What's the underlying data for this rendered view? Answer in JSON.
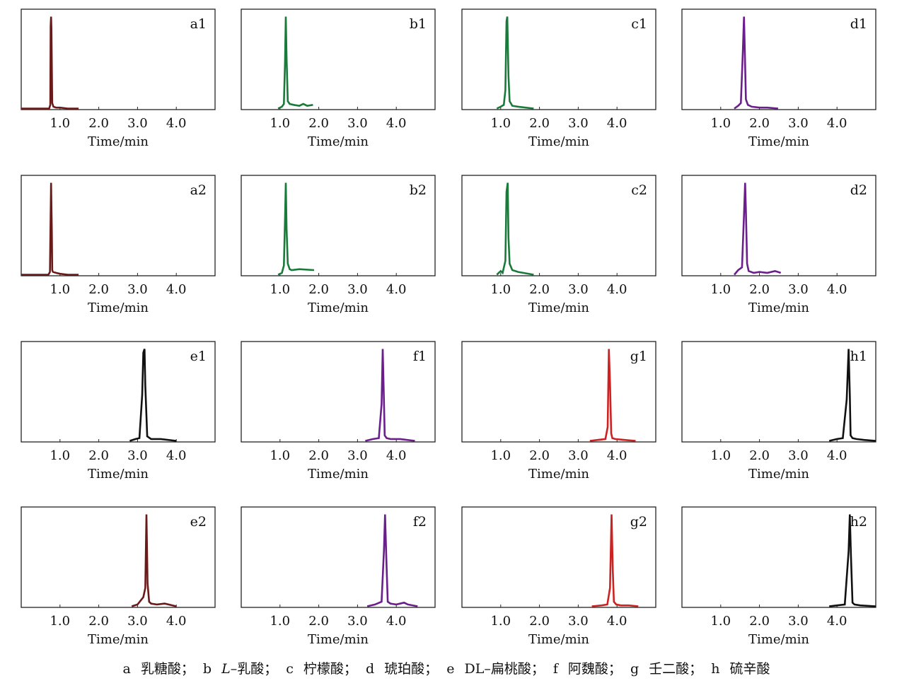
{
  "figure": {
    "xlabel": "Time/min",
    "x_ticks": [
      "1.0",
      "2.0",
      "3.0",
      "4.0"
    ]
  },
  "chart_data": [
    {
      "type": "line",
      "panel_label": "a1",
      "color": "#6b1a1a",
      "xlim": [
        0,
        5
      ],
      "x_ticks": [
        1.0,
        2.0,
        3.0,
        4.0
      ],
      "xlabel": "Time/min",
      "x": [
        0.0,
        0.72,
        0.75,
        0.76,
        0.77,
        0.78,
        0.8,
        0.83,
        0.9,
        1.0,
        1.2,
        1.48
      ],
      "y": [
        0.0,
        0.0,
        0.04,
        0.9,
        1.0,
        0.87,
        0.06,
        0.02,
        0.01,
        0.01,
        0.0,
        0.0
      ]
    },
    {
      "type": "line",
      "panel_label": "b1",
      "color": "#1a7a3a",
      "xlim": [
        0,
        5
      ],
      "x_ticks": [
        1.0,
        2.0,
        3.0,
        4.0
      ],
      "xlabel": "Time/min",
      "x": [
        0.95,
        1.05,
        1.1,
        1.13,
        1.15,
        1.17,
        1.2,
        1.25,
        1.35,
        1.5,
        1.6,
        1.7,
        1.85
      ],
      "y": [
        0.0,
        0.02,
        0.05,
        0.5,
        1.0,
        0.55,
        0.08,
        0.05,
        0.04,
        0.03,
        0.05,
        0.03,
        0.04
      ]
    },
    {
      "type": "line",
      "panel_label": "c1",
      "color": "#1a7a3a",
      "xlim": [
        0,
        5
      ],
      "x_ticks": [
        1.0,
        2.0,
        3.0,
        4.0
      ],
      "xlabel": "Time/min",
      "x": [
        0.9,
        1.0,
        1.08,
        1.12,
        1.15,
        1.17,
        1.2,
        1.23,
        1.3,
        1.45,
        1.85
      ],
      "y": [
        0.0,
        0.02,
        0.04,
        0.2,
        0.95,
        1.0,
        0.35,
        0.08,
        0.03,
        0.02,
        0.0
      ]
    },
    {
      "type": "line",
      "panel_label": "d1",
      "color": "#6a1f8a",
      "xlim": [
        0,
        5
      ],
      "x_ticks": [
        1.0,
        2.0,
        3.0,
        4.0
      ],
      "xlabel": "Time/min",
      "x": [
        1.35,
        1.45,
        1.52,
        1.57,
        1.6,
        1.62,
        1.65,
        1.7,
        1.8,
        2.0,
        2.2,
        2.48
      ],
      "y": [
        0.0,
        0.03,
        0.06,
        0.6,
        1.0,
        0.65,
        0.1,
        0.04,
        0.02,
        0.01,
        0.01,
        0.0
      ]
    },
    {
      "type": "line",
      "panel_label": "a2",
      "color": "#6b1a1a",
      "xlim": [
        0,
        5
      ],
      "x_ticks": [
        1.0,
        2.0,
        3.0,
        4.0
      ],
      "xlabel": "Time/min",
      "x": [
        0.0,
        0.7,
        0.74,
        0.75,
        0.77,
        0.79,
        0.8,
        0.82,
        0.9,
        1.0,
        1.2,
        1.48
      ],
      "y": [
        0.0,
        0.0,
        0.03,
        0.35,
        1.0,
        0.45,
        0.05,
        0.03,
        0.02,
        0.01,
        0.0,
        0.0
      ]
    },
    {
      "type": "line",
      "panel_label": "b2",
      "color": "#1a7a3a",
      "xlim": [
        0,
        5
      ],
      "x_ticks": [
        1.0,
        2.0,
        3.0,
        4.0
      ],
      "xlabel": "Time/min",
      "x": [
        0.95,
        1.05,
        1.1,
        1.13,
        1.15,
        1.17,
        1.2,
        1.25,
        1.3,
        1.5,
        1.88
      ],
      "y": [
        0.0,
        0.02,
        0.1,
        0.6,
        1.0,
        0.5,
        0.12,
        0.06,
        0.05,
        0.06,
        0.05
      ]
    },
    {
      "type": "line",
      "panel_label": "c2",
      "color": "#1a7a3a",
      "xlim": [
        0,
        5
      ],
      "x_ticks": [
        1.0,
        2.0,
        3.0,
        4.0
      ],
      "xlabel": "Time/min",
      "x": [
        0.9,
        1.0,
        1.05,
        1.12,
        1.15,
        1.18,
        1.2,
        1.23,
        1.3,
        1.45,
        1.85
      ],
      "y": [
        0.0,
        0.04,
        0.02,
        0.15,
        0.9,
        1.0,
        0.4,
        0.12,
        0.05,
        0.03,
        0.0
      ]
    },
    {
      "type": "line",
      "panel_label": "d2",
      "color": "#6a1f8a",
      "xlim": [
        0,
        5
      ],
      "x_ticks": [
        1.0,
        2.0,
        3.0,
        4.0
      ],
      "xlabel": "Time/min",
      "x": [
        1.35,
        1.45,
        1.55,
        1.6,
        1.63,
        1.65,
        1.68,
        1.72,
        1.85,
        2.0,
        2.2,
        2.4,
        2.55
      ],
      "y": [
        0.0,
        0.05,
        0.08,
        0.65,
        1.0,
        0.7,
        0.12,
        0.04,
        0.02,
        0.03,
        0.02,
        0.04,
        0.02
      ]
    },
    {
      "type": "line",
      "panel_label": "e1",
      "color": "#111111",
      "xlim": [
        0,
        5
      ],
      "x_ticks": [
        1.0,
        2.0,
        3.0,
        4.0
      ],
      "xlabel": "Time/min",
      "x": [
        2.8,
        2.95,
        3.05,
        3.12,
        3.15,
        3.18,
        3.2,
        3.25,
        3.35,
        3.6,
        4.0
      ],
      "y": [
        0.0,
        0.02,
        0.03,
        0.5,
        0.96,
        1.0,
        0.6,
        0.05,
        0.02,
        0.02,
        0.0
      ]
    },
    {
      "type": "line",
      "panel_label": "f1",
      "color": "#6a1f8a",
      "xlim": [
        0,
        5
      ],
      "x_ticks": [
        1.0,
        2.0,
        3.0,
        4.0
      ],
      "xlabel": "Time/min",
      "x": [
        3.2,
        3.4,
        3.55,
        3.62,
        3.65,
        3.68,
        3.7,
        3.75,
        3.85,
        4.1,
        4.48
      ],
      "y": [
        0.0,
        0.02,
        0.03,
        0.4,
        1.0,
        0.45,
        0.06,
        0.03,
        0.02,
        0.02,
        0.0
      ]
    },
    {
      "type": "line",
      "panel_label": "g1",
      "color": "#cc2222",
      "xlim": [
        0,
        5
      ],
      "x_ticks": [
        1.0,
        2.0,
        3.0,
        4.0
      ],
      "xlabel": "Time/min",
      "x": [
        3.3,
        3.5,
        3.7,
        3.76,
        3.79,
        3.82,
        3.85,
        3.88,
        3.95,
        4.2,
        4.48
      ],
      "y": [
        0.0,
        0.01,
        0.02,
        0.15,
        1.0,
        0.63,
        0.08,
        0.03,
        0.02,
        0.01,
        0.0
      ]
    },
    {
      "type": "line",
      "panel_label": "h1",
      "color": "#111111",
      "xlim": [
        0,
        5
      ],
      "x_ticks": [
        1.0,
        2.0,
        3.0,
        4.0
      ],
      "xlabel": "Time/min",
      "x": [
        3.8,
        4.0,
        4.15,
        4.25,
        4.3,
        4.33,
        4.35,
        4.4,
        4.5,
        4.7,
        5.0
      ],
      "y": [
        0.0,
        0.02,
        0.03,
        0.45,
        1.0,
        0.5,
        0.06,
        0.03,
        0.02,
        0.01,
        0.0
      ]
    },
    {
      "type": "line",
      "panel_label": "e2",
      "color": "#6b1a1a",
      "xlim": [
        0,
        5
      ],
      "x_ticks": [
        1.0,
        2.0,
        3.0,
        4.0
      ],
      "xlabel": "Time/min",
      "x": [
        2.85,
        3.0,
        3.15,
        3.2,
        3.23,
        3.26,
        3.3,
        3.35,
        3.5,
        3.7,
        4.0
      ],
      "y": [
        0.0,
        0.02,
        0.1,
        0.2,
        1.0,
        0.25,
        0.05,
        0.03,
        0.02,
        0.03,
        0.0
      ]
    },
    {
      "type": "line",
      "panel_label": "f2",
      "color": "#6a1f8a",
      "xlim": [
        0,
        5
      ],
      "x_ticks": [
        1.0,
        2.0,
        3.0,
        4.0
      ],
      "xlabel": "Time/min",
      "x": [
        3.25,
        3.45,
        3.62,
        3.68,
        3.71,
        3.74,
        3.78,
        3.85,
        4.0,
        4.2,
        4.3,
        4.55
      ],
      "y": [
        0.0,
        0.02,
        0.05,
        0.6,
        1.0,
        0.55,
        0.05,
        0.03,
        0.02,
        0.04,
        0.02,
        0.0
      ]
    },
    {
      "type": "line",
      "panel_label": "g2",
      "color": "#cc2222",
      "xlim": [
        0,
        5
      ],
      "x_ticks": [
        1.0,
        2.0,
        3.0,
        4.0
      ],
      "xlabel": "Time/min",
      "x": [
        3.35,
        3.6,
        3.75,
        3.82,
        3.86,
        3.89,
        3.92,
        3.98,
        4.1,
        4.3,
        4.55
      ],
      "y": [
        0.0,
        0.01,
        0.02,
        0.2,
        1.0,
        0.4,
        0.05,
        0.02,
        0.01,
        0.01,
        0.0
      ]
    },
    {
      "type": "line",
      "panel_label": "h2",
      "color": "#111111",
      "xlim": [
        0,
        5
      ],
      "x_ticks": [
        1.0,
        2.0,
        3.0,
        4.0
      ],
      "xlabel": "Time/min",
      "x": [
        3.8,
        4.0,
        4.2,
        4.3,
        4.33,
        4.36,
        4.4,
        4.45,
        4.6,
        5.0
      ],
      "y": [
        0.0,
        0.01,
        0.02,
        0.6,
        1.0,
        0.55,
        0.04,
        0.02,
        0.01,
        0.0
      ]
    }
  ],
  "caption": {
    "items": [
      {
        "letter": "a",
        "name": "乳糖酸；"
      },
      {
        "letter": "b",
        "name_prefix": "L",
        "name": "–乳酸；"
      },
      {
        "letter": "c",
        "name": "柠檬酸；"
      },
      {
        "letter": "d",
        "name": "琥珀酸；"
      },
      {
        "letter": "e",
        "name": "DL–扁桃酸；"
      },
      {
        "letter": "f",
        "name": "阿魏酸；"
      },
      {
        "letter": "g",
        "name": "壬二酸；"
      },
      {
        "letter": "h",
        "name": "硫辛酸"
      }
    ]
  }
}
